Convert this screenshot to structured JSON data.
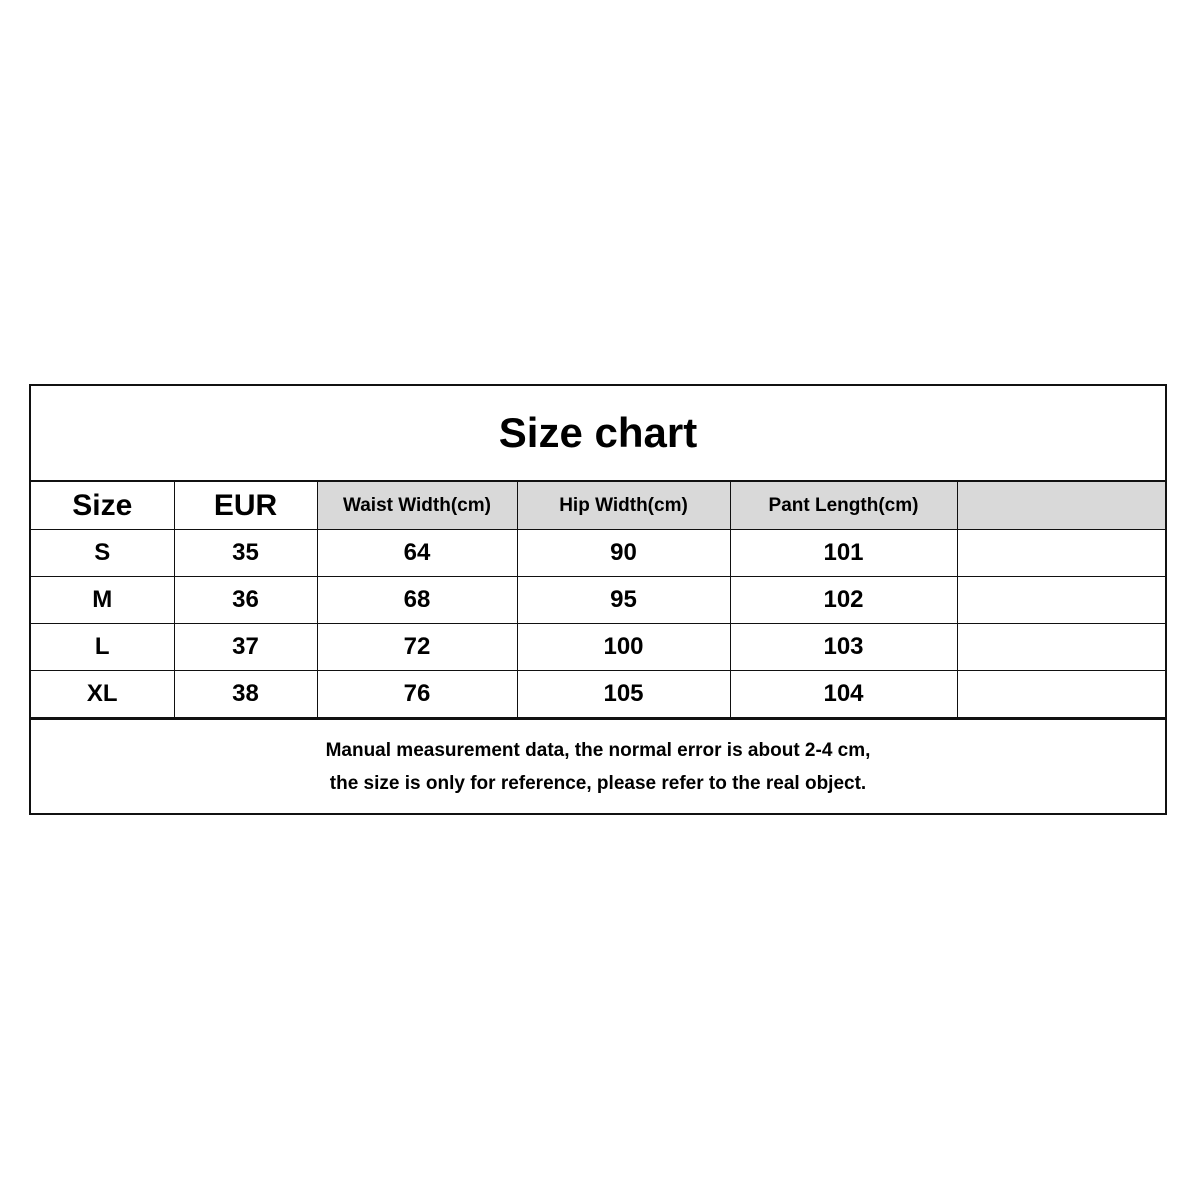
{
  "title": "Size chart",
  "table": {
    "headers": [
      "Size",
      "EUR",
      "Waist Width(cm)",
      "Hip Width(cm)",
      "Pant Length(cm)",
      ""
    ],
    "rows": [
      [
        "S",
        "35",
        "64",
        "90",
        "101",
        ""
      ],
      [
        "M",
        "36",
        "68",
        "95",
        "102",
        ""
      ],
      [
        "L",
        "37",
        "72",
        "100",
        "103",
        ""
      ],
      [
        "XL",
        "38",
        "76",
        "105",
        "104",
        ""
      ]
    ]
  },
  "note": {
    "line1": "Manual measurement data, the normal error is about 2-4 cm,",
    "line2": "the size is only for reference, please refer to the real object."
  },
  "colors": {
    "header_fill": "#d9d9d9",
    "border": "#111111"
  }
}
